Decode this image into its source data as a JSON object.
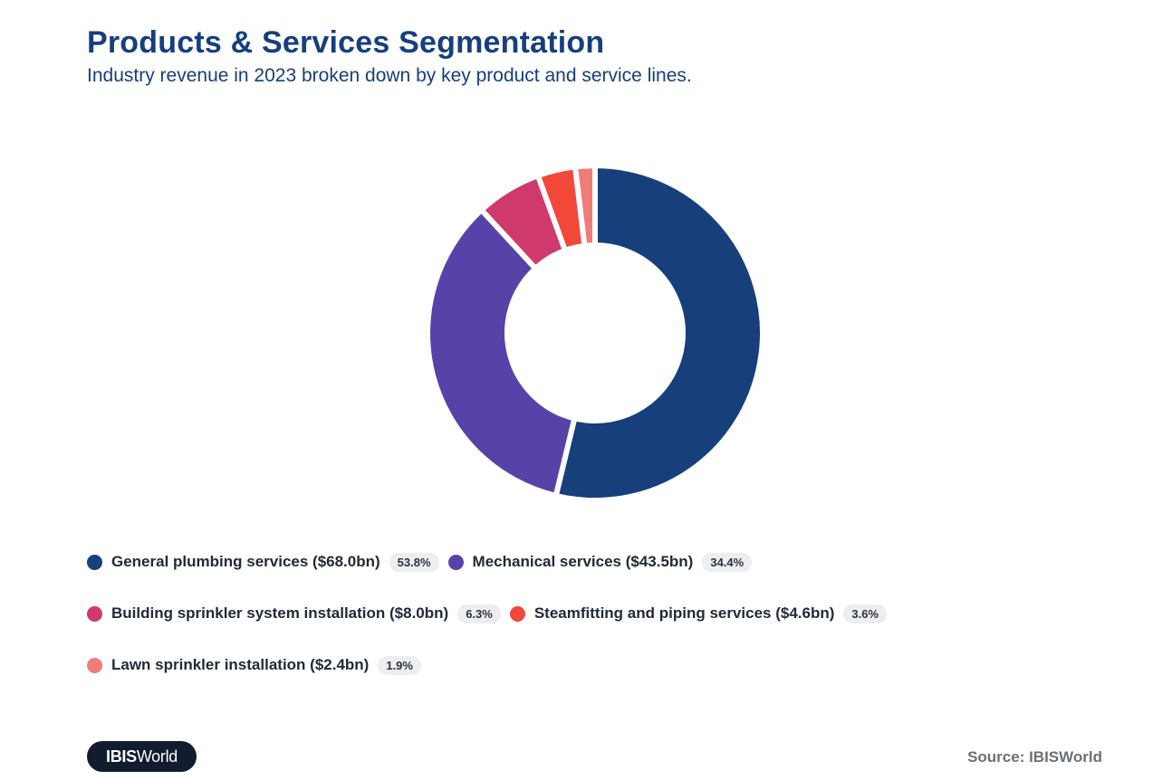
{
  "header": {
    "title": "Products & Services Segmentation",
    "subtitle": "Industry revenue in 2023 broken down by key product and service lines."
  },
  "chart_data": {
    "type": "pie",
    "title": "Products & Services Segmentation",
    "subtitle": "Industry revenue in 2023 broken down by key product and service lines.",
    "donut": true,
    "start_angle": "12 o'clock, clockwise",
    "series": [
      {
        "name": "General plumbing services",
        "label": "General plumbing services ($68.0bn)",
        "value_bn": 68.0,
        "percent": 53.8,
        "percent_label": "53.8%",
        "color": "#163f7c"
      },
      {
        "name": "Mechanical services",
        "label": "Mechanical services ($43.5bn)",
        "value_bn": 43.5,
        "percent": 34.4,
        "percent_label": "34.4%",
        "color": "#5743a8"
      },
      {
        "name": "Building sprinkler system installation",
        "label": "Building sprinkler system installation ($8.0bn)",
        "value_bn": 8.0,
        "percent": 6.3,
        "percent_label": "6.3%",
        "color": "#d0396e"
      },
      {
        "name": "Steamfitting and piping services",
        "label": "Steamfitting and piping services ($4.6bn)",
        "value_bn": 4.6,
        "percent": 3.6,
        "percent_label": "3.6%",
        "color": "#f1483a"
      },
      {
        "name": "Lawn sprinkler installation",
        "label": "Lawn sprinkler installation ($2.4bn)",
        "value_bn": 2.4,
        "percent": 1.9,
        "percent_label": "1.9%",
        "color": "#f07c7a"
      }
    ],
    "legend_placement": "bottom-left"
  },
  "footer": {
    "logo_bold": "IBIS",
    "logo_normal": "World",
    "source": "Source: IBISWorld"
  }
}
